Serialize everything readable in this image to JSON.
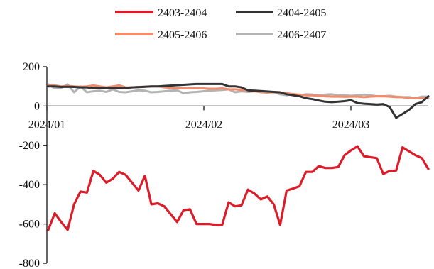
{
  "chart_data": {
    "type": "line",
    "title": "",
    "xlabel": "",
    "ylabel": "",
    "ylim": [
      -800,
      200
    ],
    "yticks": [
      200,
      0,
      -200,
      -400,
      -600,
      -800
    ],
    "xticks": [
      "2024/01",
      "2024/02",
      "2024/03"
    ],
    "legend": {
      "placement": "top",
      "columns": 2
    },
    "grid": false,
    "series": [
      {
        "name": "2403-2404",
        "color": "#dc1c28",
        "y": [
          -630,
          -545,
          -590,
          -630,
          -500,
          -435,
          -440,
          -330,
          -350,
          -390,
          -370,
          -335,
          -350,
          -390,
          -430,
          -355,
          -500,
          -495,
          -510,
          -550,
          -590,
          -530,
          -525,
          -600,
          -600,
          -600,
          -605,
          -605,
          -490,
          -510,
          -505,
          -425,
          -445,
          -475,
          -460,
          -500,
          -605,
          -430,
          -420,
          -408,
          -335,
          -335,
          -305,
          -315,
          -315,
          -310,
          -250,
          -225,
          -205,
          -255,
          -260,
          -265,
          -345,
          -330,
          -328,
          -210,
          -230,
          -250,
          -265,
          -320
        ]
      },
      {
        "name": "2404-2405",
        "color": "#333333",
        "y": [
          100,
          100,
          97,
          98,
          97,
          95,
          95,
          90,
          92,
          92,
          92,
          90,
          92,
          95,
          96,
          98,
          100,
          100,
          102,
          104,
          106,
          108,
          110,
          112,
          112,
          112,
          112,
          112,
          100,
          100,
          95,
          80,
          78,
          76,
          74,
          72,
          70,
          60,
          55,
          50,
          40,
          35,
          28,
          22,
          20,
          22,
          25,
          30,
          15,
          12,
          10,
          8,
          10,
          -5,
          -60,
          -40,
          -20,
          10,
          20,
          50
        ]
      },
      {
        "name": "2405-2406",
        "color": "#f08b6b",
        "y": [
          105,
          105,
          100,
          103,
          100,
          98,
          100,
          105,
          100,
          95,
          100,
          105,
          95,
          95,
          97,
          98,
          100,
          100,
          95,
          92,
          90,
          90,
          90,
          90,
          90,
          88,
          88,
          90,
          85,
          85,
          82,
          80,
          75,
          72,
          70,
          70,
          68,
          66,
          60,
          58,
          55,
          55,
          52,
          50,
          48,
          48,
          47,
          48,
          48,
          45,
          48,
          50,
          50,
          48,
          45,
          45,
          40,
          40,
          40,
          40
        ]
      },
      {
        "name": "2406-2407",
        "color": "#b3b3b3",
        "y": [
          110,
          90,
          92,
          110,
          70,
          100,
          70,
          75,
          78,
          72,
          85,
          72,
          70,
          75,
          80,
          78,
          70,
          72,
          75,
          78,
          80,
          65,
          70,
          72,
          75,
          78,
          80,
          82,
          85,
          70,
          75,
          72,
          75,
          70,
          68,
          72,
          60,
          55,
          62,
          55,
          60,
          58,
          55,
          58,
          60,
          55,
          55,
          52,
          55,
          58,
          55,
          50,
          50,
          52,
          48,
          45,
          46,
          40,
          48,
          48
        ]
      }
    ]
  }
}
